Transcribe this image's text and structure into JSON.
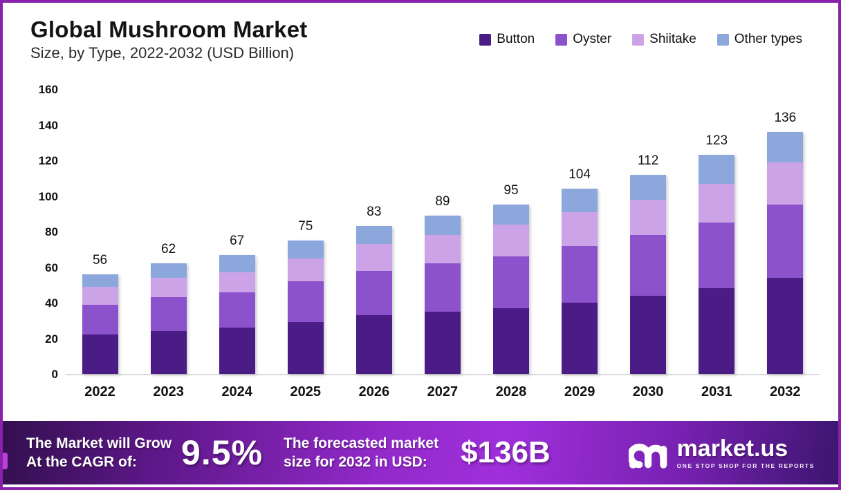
{
  "header": {
    "title": "Global Mushroom Market",
    "subtitle": "Size, by Type, 2022-2032 (USD Billion)"
  },
  "chart_data": {
    "type": "bar",
    "stacked": true,
    "title": "Global Mushroom Market Size, by Type, 2022-2032 (USD Billion)",
    "categories": [
      "2022",
      "2023",
      "2024",
      "2025",
      "2026",
      "2027",
      "2028",
      "2029",
      "2030",
      "2031",
      "2032"
    ],
    "series": [
      {
        "name": "Button",
        "color": "#4b1b86",
        "values": [
          22,
          24,
          26,
          29,
          33,
          35,
          37,
          40,
          44,
          48,
          54
        ]
      },
      {
        "name": "Oyster",
        "color": "#8b52cb",
        "values": [
          17,
          19,
          20,
          23,
          25,
          27,
          29,
          32,
          34,
          37,
          41
        ]
      },
      {
        "name": "Shiitake",
        "color": "#cda3e8",
        "values": [
          10,
          11,
          11,
          13,
          15,
          16,
          18,
          19,
          20,
          22,
          24
        ]
      },
      {
        "name": "Other types",
        "color": "#8ba7dc",
        "values": [
          7,
          8,
          10,
          10,
          10,
          11,
          11,
          13,
          14,
          16,
          17
        ]
      }
    ],
    "totals": [
      56,
      62,
      67,
      75,
      83,
      89,
      95,
      104,
      112,
      123,
      136
    ],
    "ylabel": "",
    "xlabel": "",
    "ylim": [
      0,
      160
    ],
    "yticks": [
      0,
      20,
      40,
      60,
      80,
      100,
      120,
      140,
      160
    ],
    "grid": false,
    "legend_position": "top-right"
  },
  "footer": {
    "cagr_line1": "The Market will Grow",
    "cagr_line2": "At the CAGR of:",
    "cagr_value": "9.5%",
    "forecast_line1": "The forecasted market",
    "forecast_line2": "size for 2032 in USD:",
    "forecast_value": "$136B",
    "brand_name": "market.us",
    "brand_tagline": "ONE STOP SHOP FOR THE REPORTS"
  },
  "colors": {
    "frame_border": "#8a21ad",
    "footer_gradient_start": "#33104f",
    "footer_gradient_mid": "#a02fdb",
    "footer_gradient_end": "#3d1570",
    "axis_line": "#d9d9d9",
    "text_primary": "#141414"
  }
}
